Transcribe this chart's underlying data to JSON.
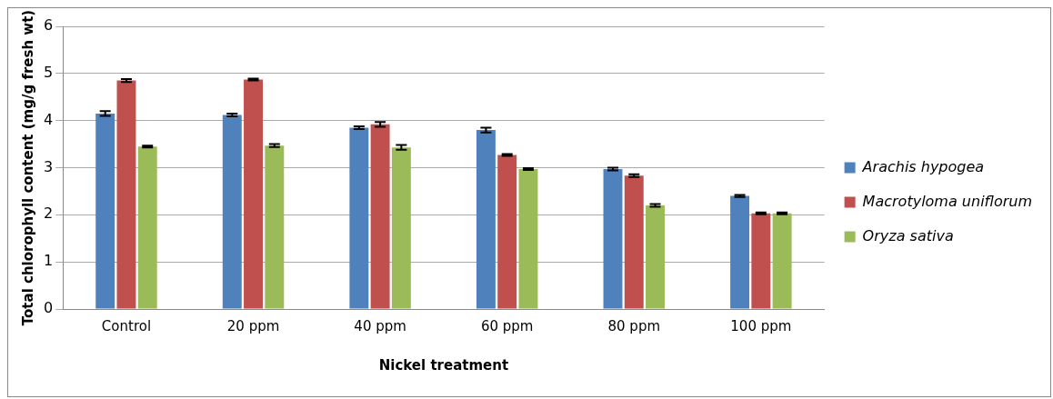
{
  "chart_data": {
    "type": "bar",
    "xlabel": "Nickel treatment",
    "ylabel": "Total chlorophyll content (mg/g fresh wt)",
    "categories": [
      "Control",
      "20 ppm",
      "40 ppm",
      "60 ppm",
      "80 ppm",
      "100 ppm"
    ],
    "series": [
      {
        "name": "Arachis hypogea",
        "color": "#4f81bd",
        "values": [
          4.15,
          4.12,
          3.85,
          3.8,
          2.97,
          2.4
        ],
        "errors": [
          0.05,
          0.03,
          0.03,
          0.05,
          0.03,
          0.02
        ]
      },
      {
        "name": "Macrotyloma uniflorum",
        "color": "#c0504d",
        "values": [
          4.85,
          4.87,
          3.92,
          3.27,
          2.83,
          2.03
        ],
        "errors": [
          0.03,
          0.02,
          0.05,
          0.02,
          0.03,
          0.02
        ]
      },
      {
        "name": "Oryza sativa",
        "color": "#9bbb59",
        "values": [
          3.45,
          3.47,
          3.43,
          2.97,
          2.2,
          2.03
        ],
        "errors": [
          0.02,
          0.03,
          0.05,
          0.02,
          0.03,
          0.02
        ]
      }
    ],
    "ylim": [
      0,
      6
    ],
    "yticks": [
      0,
      1,
      2,
      3,
      4,
      5,
      6
    ],
    "grid": "y",
    "legend": "right"
  }
}
